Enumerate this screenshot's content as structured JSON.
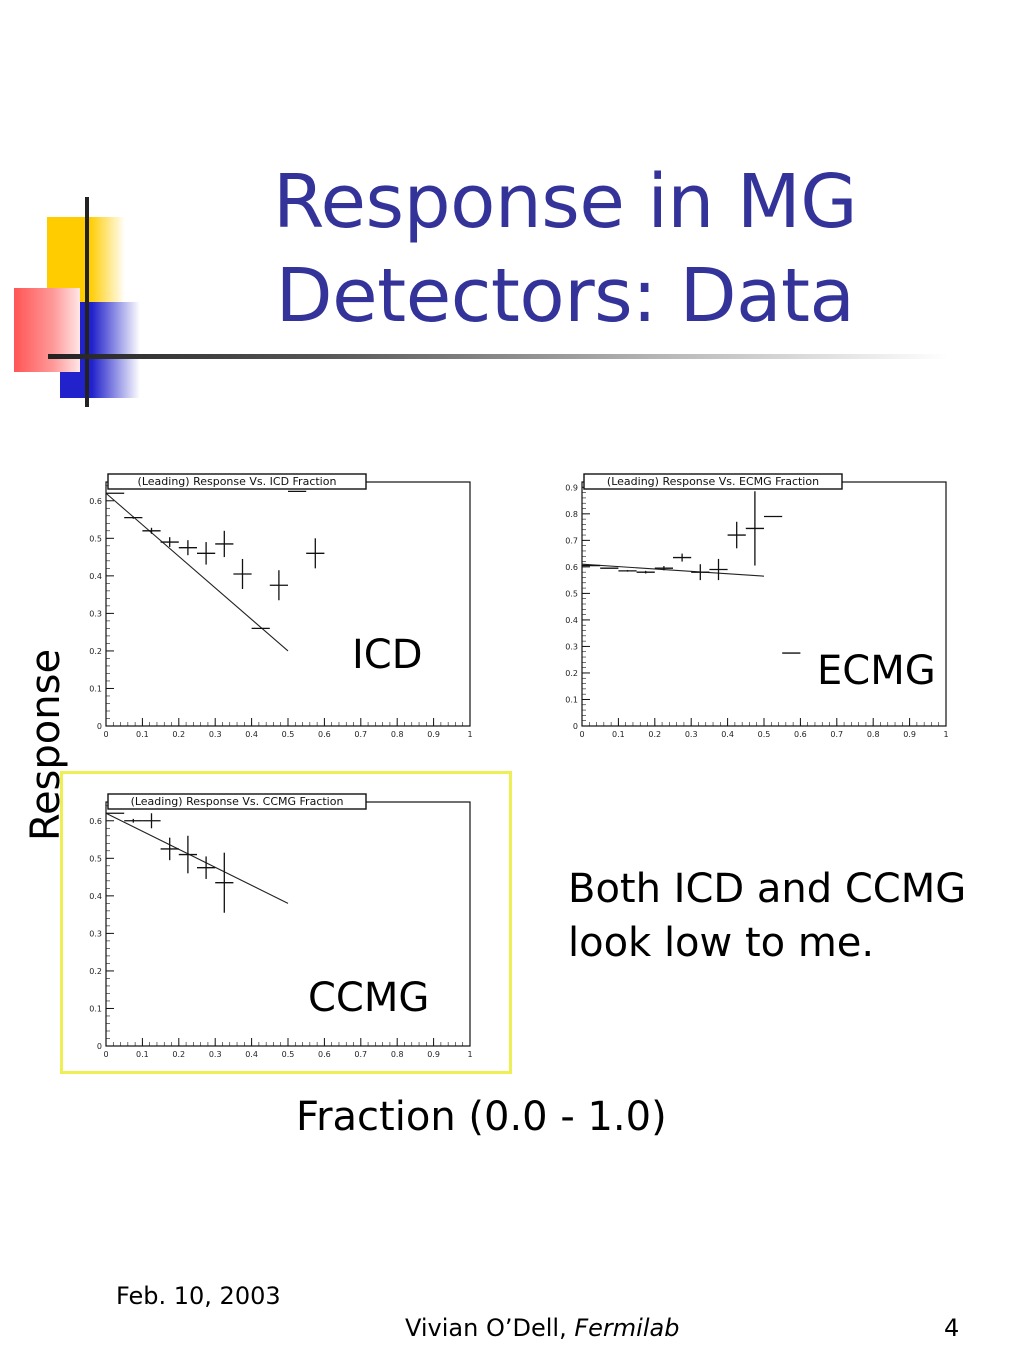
{
  "slide": {
    "title_line1": "Response in MG",
    "title_line2": "Detectors: Data",
    "y_axis_label": "Response",
    "x_axis_label": "Fraction (0.0 - 1.0)",
    "comment_line1": "Both ICD and CCMG",
    "comment_line2": "look low to me.",
    "footer_date": "Feb. 10, 2003",
    "footer_author": "Vivian O’Dell, ",
    "footer_affiliation": "Fermilab",
    "page_number": "4"
  },
  "chart_data": [
    {
      "type": "scatter",
      "id": "icd",
      "title": "(Leading) Response Vs. ICD Fraction",
      "label": "ICD",
      "xlim": [
        0,
        1
      ],
      "ylim": [
        0,
        0.65
      ],
      "x_ticks": [
        "0",
        "0.1",
        "0.2",
        "0.3",
        "0.4",
        "0.5",
        "0.6",
        "0.7",
        "0.8",
        "0.9",
        "1"
      ],
      "y_ticks": [
        {
          "v": 0,
          "t": "0"
        },
        {
          "v": 0.1,
          "t": "0.1"
        },
        {
          "v": 0.2,
          "t": "0.2"
        },
        {
          "v": 0.3,
          "t": "0.3"
        },
        {
          "v": 0.4,
          "t": "0.4"
        },
        {
          "v": 0.5,
          "t": "0.5"
        },
        {
          "v": 0.6,
          "t": "0.6"
        }
      ],
      "points": [
        {
          "x": 0.025,
          "y": 0.62,
          "ex": 0.025,
          "ey": 0
        },
        {
          "x": 0.075,
          "y": 0.555,
          "ex": 0.025,
          "ey": 0.003
        },
        {
          "x": 0.125,
          "y": 0.52,
          "ex": 0.025,
          "ey": 0.008
        },
        {
          "x": 0.175,
          "y": 0.49,
          "ex": 0.025,
          "ey": 0.013
        },
        {
          "x": 0.225,
          "y": 0.475,
          "ex": 0.025,
          "ey": 0.02
        },
        {
          "x": 0.275,
          "y": 0.46,
          "ex": 0.025,
          "ey": 0.03
        },
        {
          "x": 0.325,
          "y": 0.485,
          "ex": 0.025,
          "ey": 0.035
        },
        {
          "x": 0.375,
          "y": 0.405,
          "ex": 0.025,
          "ey": 0.04
        },
        {
          "x": 0.425,
          "y": 0.26,
          "ex": 0.025,
          "ey": 0
        },
        {
          "x": 0.475,
          "y": 0.375,
          "ex": 0.025,
          "ey": 0.04
        },
        {
          "x": 0.525,
          "y": 0.625,
          "ex": 0.025,
          "ey": 0
        },
        {
          "x": 0.575,
          "y": 0.46,
          "ex": 0.025,
          "ey": 0.04
        }
      ],
      "fit": {
        "x": [
          0,
          0.5
        ],
        "y": [
          0.62,
          0.2
        ]
      }
    },
    {
      "type": "scatter",
      "id": "ecmg",
      "title": "(Leading) Response Vs. ECMG Fraction",
      "label": "ECMG",
      "xlim": [
        0,
        1
      ],
      "ylim": [
        0,
        0.92
      ],
      "x_ticks": [
        "0",
        "0.1",
        "0.2",
        "0.3",
        "0.4",
        "0.5",
        "0.6",
        "0.7",
        "0.8",
        "0.9",
        "1"
      ],
      "y_ticks": [
        {
          "v": 0,
          "t": "0"
        },
        {
          "v": 0.1,
          "t": "0.1"
        },
        {
          "v": 0.2,
          "t": "0.2"
        },
        {
          "v": 0.3,
          "t": "0.3"
        },
        {
          "v": 0.4,
          "t": "0.4"
        },
        {
          "v": 0.5,
          "t": "0.5"
        },
        {
          "v": 0.6,
          "t": "0.6"
        },
        {
          "v": 0.7,
          "t": "0.7"
        },
        {
          "v": 0.8,
          "t": "0.8"
        },
        {
          "v": 0.9,
          "t": "0.9"
        }
      ],
      "points": [
        {
          "x": 0.025,
          "y": 0.605,
          "ex": 0.025,
          "ey": 0
        },
        {
          "x": 0.075,
          "y": 0.595,
          "ex": 0.025,
          "ey": 0
        },
        {
          "x": 0.125,
          "y": 0.585,
          "ex": 0.025,
          "ey": 0.003
        },
        {
          "x": 0.175,
          "y": 0.58,
          "ex": 0.025,
          "ey": 0.005
        },
        {
          "x": 0.225,
          "y": 0.595,
          "ex": 0.025,
          "ey": 0.008
        },
        {
          "x": 0.275,
          "y": 0.635,
          "ex": 0.025,
          "ey": 0.015
        },
        {
          "x": 0.325,
          "y": 0.58,
          "ex": 0.025,
          "ey": 0.03
        },
        {
          "x": 0.375,
          "y": 0.59,
          "ex": 0.025,
          "ey": 0.04
        },
        {
          "x": 0.425,
          "y": 0.72,
          "ex": 0.025,
          "ey": 0.05
        },
        {
          "x": 0.475,
          "y": 0.745,
          "ex": 0.025,
          "ey": 0.14
        },
        {
          "x": 0.525,
          "y": 0.79,
          "ex": 0.025,
          "ey": 0
        },
        {
          "x": 0.575,
          "y": 0.275,
          "ex": 0.025,
          "ey": 0
        }
      ],
      "fit": {
        "x": [
          0,
          0.5
        ],
        "y": [
          0.61,
          0.565
        ]
      }
    },
    {
      "type": "scatter",
      "id": "ccmg",
      "title": "(Leading) Response Vs. CCMG Fraction",
      "label": "CCMG",
      "xlim": [
        0,
        1
      ],
      "ylim": [
        0,
        0.65
      ],
      "x_ticks": [
        "0",
        "0.1",
        "0.2",
        "0.3",
        "0.4",
        "0.5",
        "0.6",
        "0.7",
        "0.8",
        "0.9",
        "1"
      ],
      "y_ticks": [
        {
          "v": 0,
          "t": "0"
        },
        {
          "v": 0.1,
          "t": "0.1"
        },
        {
          "v": 0.2,
          "t": "0.2"
        },
        {
          "v": 0.3,
          "t": "0.3"
        },
        {
          "v": 0.4,
          "t": "0.4"
        },
        {
          "v": 0.5,
          "t": "0.5"
        },
        {
          "v": 0.6,
          "t": "0.6"
        }
      ],
      "points": [
        {
          "x": 0.025,
          "y": 0.62,
          "ex": 0.025,
          "ey": 0
        },
        {
          "x": 0.075,
          "y": 0.6,
          "ex": 0.025,
          "ey": 0.005
        },
        {
          "x": 0.125,
          "y": 0.6,
          "ex": 0.025,
          "ey": 0.02
        },
        {
          "x": 0.175,
          "y": 0.525,
          "ex": 0.025,
          "ey": 0.03
        },
        {
          "x": 0.225,
          "y": 0.51,
          "ex": 0.025,
          "ey": 0.05
        },
        {
          "x": 0.275,
          "y": 0.475,
          "ex": 0.025,
          "ey": 0.03
        },
        {
          "x": 0.325,
          "y": 0.435,
          "ex": 0.025,
          "ey": 0.08
        }
      ],
      "fit": {
        "x": [
          0,
          0.5
        ],
        "y": [
          0.62,
          0.38
        ]
      }
    }
  ]
}
